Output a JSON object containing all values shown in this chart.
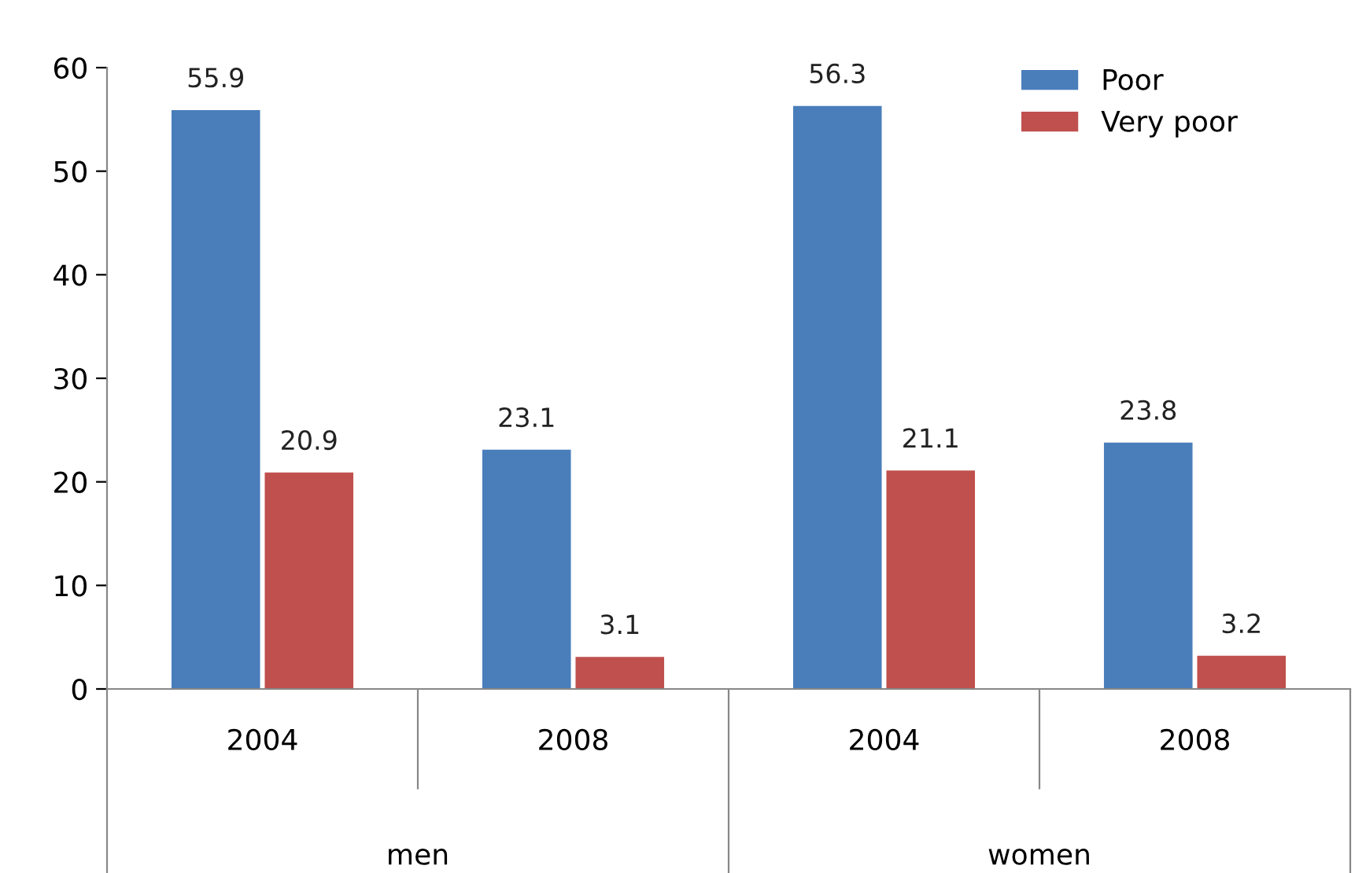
{
  "chart_data": {
    "type": "bar",
    "categories": [
      "2004",
      "2008",
      "2004",
      "2008"
    ],
    "series": [
      {
        "name": "Poor",
        "color": "#4a7ebb",
        "values": [
          55.9,
          23.1,
          56.3,
          23.8
        ]
      },
      {
        "name": "Very poor",
        "color": "#c0504d",
        "values": [
          20.9,
          3.1,
          21.1,
          3.2
        ]
      }
    ],
    "ylim": [
      0,
      60
    ],
    "yticks": [
      0,
      10,
      20,
      30,
      40,
      50,
      60
    ],
    "data_labels": true,
    "legend": "top right",
    "grid": false,
    "annotations": [
      "men",
      "women"
    ]
  }
}
